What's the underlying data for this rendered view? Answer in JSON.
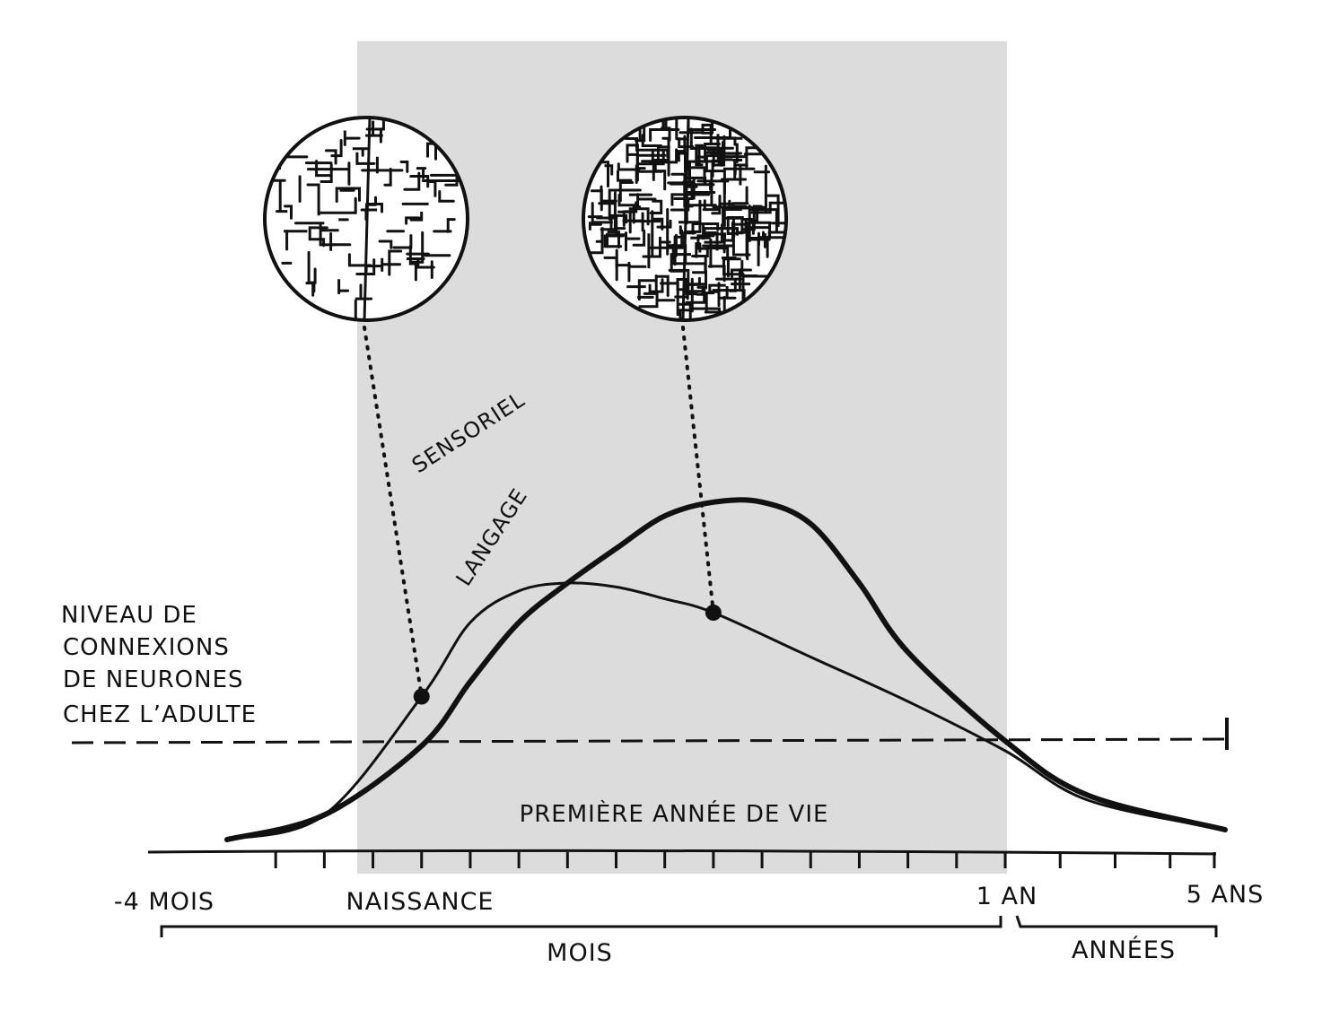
{
  "colors": {
    "ink": "#111111",
    "shade": "#dcdcdc",
    "circle_fill": "#ffffff"
  },
  "labels": {
    "y_level_lines": [
      "NIVEAU DE",
      "CONNEXIONS",
      "DE NEURONES",
      "CHEZ L’ADULTE"
    ],
    "shaded_region": "PREMIÈRE ANNÉE DE VIE",
    "scale_months": "MOIS",
    "scale_years": "ANNÉES"
  },
  "chart_data": {
    "type": "line",
    "title": "",
    "xlabel": "",
    "ylabel": "",
    "x_tick_labels": [
      "-4 MOIS",
      "NAISSANCE",
      "1 AN",
      "5 ANS"
    ],
    "shaded_span": [
      "NAISSANCE",
      "1 AN"
    ],
    "adult_level": 1.0,
    "series": [
      {
        "name": "SENSORIEL",
        "style": "thin",
        "x_months": [
          -4,
          -2,
          0,
          1,
          2,
          3,
          4,
          5,
          6,
          8,
          10,
          12,
          30,
          60
        ],
        "y": [
          0.0,
          0.25,
          1.45,
          2.2,
          2.52,
          2.6,
          2.56,
          2.44,
          2.3,
          1.85,
          1.4,
          0.9,
          0.4,
          0.1
        ]
      },
      {
        "name": "LANGAGE",
        "style": "thick",
        "x_months": [
          -4,
          -2,
          0,
          1,
          2,
          3,
          4,
          5,
          6,
          7,
          8,
          9,
          10,
          12,
          30,
          60
        ],
        "y": [
          0.0,
          0.25,
          0.95,
          1.6,
          2.2,
          2.6,
          2.95,
          3.28,
          3.42,
          3.42,
          3.2,
          2.6,
          1.9,
          1.0,
          0.45,
          0.1
        ]
      }
    ],
    "highlights": [
      {
        "series": "SENSORIEL",
        "x_months": 0,
        "image": "sparse-neuron-network"
      },
      {
        "series": "SENSORIEL",
        "x_months": 6,
        "image": "dense-neuron-network"
      }
    ],
    "grid": false,
    "legend": "none"
  }
}
